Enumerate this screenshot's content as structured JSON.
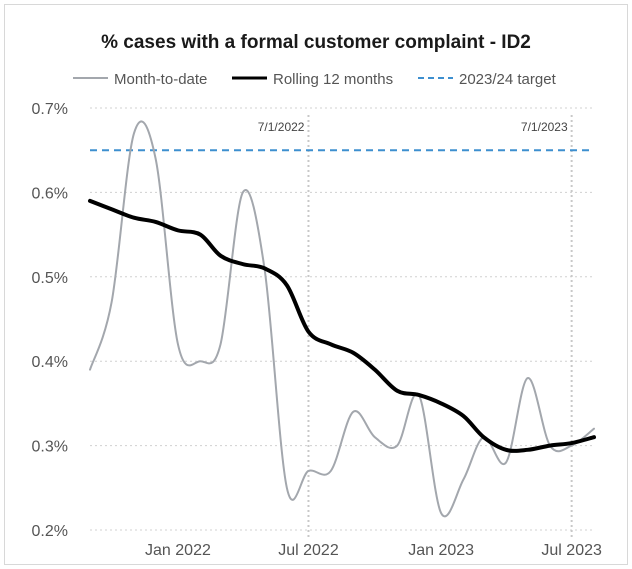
{
  "chart_data": {
    "type": "line",
    "title": "% cases with a formal customer complaint - ID2",
    "xlabel": "",
    "ylabel": "",
    "ylim": [
      0.2,
      0.7
    ],
    "xlim": [
      "2021-09-01",
      "2023-08-01"
    ],
    "y_ticks": [
      "0.2%",
      "0.3%",
      "0.4%",
      "0.5%",
      "0.6%",
      "0.7%"
    ],
    "y_tick_values": [
      0.2,
      0.3,
      0.4,
      0.5,
      0.6,
      0.7
    ],
    "x_ticks": [
      "Jan 2022",
      "Jul 2022",
      "Jan 2023",
      "Jul 2023"
    ],
    "x_tick_dates": [
      "2022-01-01",
      "2022-07-01",
      "2023-01-01",
      "2023-07-01"
    ],
    "grid": "horizontal dotted",
    "legend_position": "top",
    "reference_lines": [
      {
        "date": "2022-07-01",
        "label": "7/1/2022"
      },
      {
        "date": "2023-07-01",
        "label": "7/1/2023"
      }
    ],
    "series": [
      {
        "name": "Month-to-date",
        "style": "solid",
        "color": "#a3a7ad",
        "points": [
          [
            "2021-09-01",
            0.39
          ],
          [
            "2021-10-01",
            0.47
          ],
          [
            "2021-11-01",
            0.67
          ],
          [
            "2021-12-01",
            0.64
          ],
          [
            "2022-01-01",
            0.42
          ],
          [
            "2022-02-01",
            0.4
          ],
          [
            "2022-03-01",
            0.42
          ],
          [
            "2022-04-01",
            0.6
          ],
          [
            "2022-05-01",
            0.51
          ],
          [
            "2022-06-01",
            0.25
          ],
          [
            "2022-07-01",
            0.27
          ],
          [
            "2022-08-01",
            0.27
          ],
          [
            "2022-09-01",
            0.34
          ],
          [
            "2022-10-01",
            0.31
          ],
          [
            "2022-11-01",
            0.3
          ],
          [
            "2022-12-01",
            0.36
          ],
          [
            "2023-01-01",
            0.22
          ],
          [
            "2023-02-01",
            0.26
          ],
          [
            "2023-03-01",
            0.31
          ],
          [
            "2023-04-01",
            0.28
          ],
          [
            "2023-05-01",
            0.38
          ],
          [
            "2023-06-01",
            0.3
          ],
          [
            "2023-07-01",
            0.3
          ],
          [
            "2023-08-01",
            0.32
          ]
        ]
      },
      {
        "name": "Rolling 12 months",
        "style": "solid-bold",
        "color": "#000000",
        "points": [
          [
            "2021-09-01",
            0.59
          ],
          [
            "2021-10-01",
            0.58
          ],
          [
            "2021-11-01",
            0.57
          ],
          [
            "2021-12-01",
            0.565
          ],
          [
            "2022-01-01",
            0.555
          ],
          [
            "2022-02-01",
            0.55
          ],
          [
            "2022-03-01",
            0.525
          ],
          [
            "2022-04-01",
            0.515
          ],
          [
            "2022-05-01",
            0.51
          ],
          [
            "2022-06-01",
            0.49
          ],
          [
            "2022-07-01",
            0.435
          ],
          [
            "2022-08-01",
            0.42
          ],
          [
            "2022-09-01",
            0.41
          ],
          [
            "2022-10-01",
            0.39
          ],
          [
            "2022-11-01",
            0.365
          ],
          [
            "2022-12-01",
            0.36
          ],
          [
            "2023-01-01",
            0.35
          ],
          [
            "2023-02-01",
            0.335
          ],
          [
            "2023-03-01",
            0.31
          ],
          [
            "2023-04-01",
            0.295
          ],
          [
            "2023-05-01",
            0.295
          ],
          [
            "2023-06-01",
            0.3
          ],
          [
            "2023-07-01",
            0.303
          ],
          [
            "2023-08-01",
            0.31
          ]
        ]
      },
      {
        "name": "2023/24 target",
        "style": "dashed",
        "color": "#3d8fcf",
        "points": [
          [
            "2021-09-01",
            0.65
          ],
          [
            "2023-08-01",
            0.65
          ]
        ]
      }
    ]
  }
}
